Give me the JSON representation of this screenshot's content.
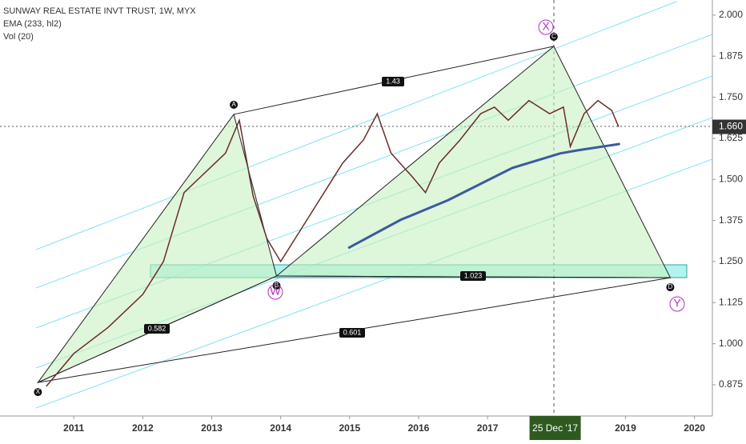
{
  "chart_data": {
    "type": "line",
    "title": "SUNWAY REAL ESTATE INVT TRUST, 1W, MYX",
    "indicators": [
      "EMA (233, hl2)",
      "Vol (20)"
    ],
    "xlim": [
      2009.93,
      2020.26
    ],
    "ylim": [
      0.78,
      2.046
    ],
    "xticks": [
      2011,
      2012,
      2013,
      2014,
      2015,
      2016,
      2017,
      2018,
      2019,
      2020
    ],
    "yticks": [
      {
        "value": 2,
        "label": "2.000"
      },
      {
        "value": 1.875,
        "label": "1.875"
      },
      {
        "value": 1.75,
        "label": "1.750"
      },
      {
        "value": 1.625,
        "label": "1.625"
      },
      {
        "value": 1.5,
        "label": "1.500"
      },
      {
        "value": 1.375,
        "label": "1.375"
      },
      {
        "value": 1.25,
        "label": "1.250"
      },
      {
        "value": 1.125,
        "label": "1.125"
      },
      {
        "value": 1,
        "label": "1.000"
      },
      {
        "value": 0.875,
        "label": "0.875"
      }
    ],
    "series": [
      {
        "color": "#6b2c2c",
        "x": [
          2010.6,
          2011.0,
          2011.5,
          2012.0,
          2012.3,
          2012.6,
          2012.9,
          2013.2,
          2013.4,
          2013.6,
          2013.8,
          2014.0,
          2014.3,
          2014.6,
          2014.9,
          2015.2,
          2015.4,
          2015.6,
          2015.9,
          2016.1,
          2016.3,
          2016.6,
          2016.9,
          2017.1,
          2017.3,
          2017.6,
          2017.9,
          2018.1,
          2018.2,
          2018.4,
          2018.6,
          2018.8,
          2018.9
        ],
        "values": [
          0.87,
          0.97,
          1.05,
          1.15,
          1.25,
          1.46,
          1.52,
          1.58,
          1.68,
          1.45,
          1.32,
          1.25,
          1.35,
          1.45,
          1.55,
          1.62,
          1.7,
          1.58,
          1.51,
          1.46,
          1.55,
          1.62,
          1.7,
          1.72,
          1.68,
          1.74,
          1.7,
          1.72,
          1.6,
          1.7,
          1.74,
          1.71,
          1.66
        ]
      },
      {
        "color": "#3a5ba0",
        "x": [
          2014.98,
          2015.74,
          2016.43,
          2017.36,
          2018.05,
          2018.29,
          2018.92
        ],
        "values": [
          1.291,
          1.377,
          1.437,
          1.535,
          1.579,
          1.588,
          1.608
        ]
      }
    ],
    "pattern": {
      "labels": [
        "X",
        "A",
        "B",
        "C",
        "D"
      ],
      "x": [
        2010.48,
        2013.32,
        2013.94,
        2017.96,
        2019.65
      ],
      "values": [
        0.882,
        1.698,
        1.206,
        1.905,
        1.201
      ]
    },
    "ratios": [
      "1.43",
      "1.023",
      "0.582",
      "0.601"
    ],
    "waves": [
      "X",
      "W",
      "Y"
    ],
    "last_price": {
      "value": 1.66,
      "label": "1.660"
    },
    "crosshair": {
      "value": 2017.98,
      "label": "25 Dec '17"
    }
  }
}
